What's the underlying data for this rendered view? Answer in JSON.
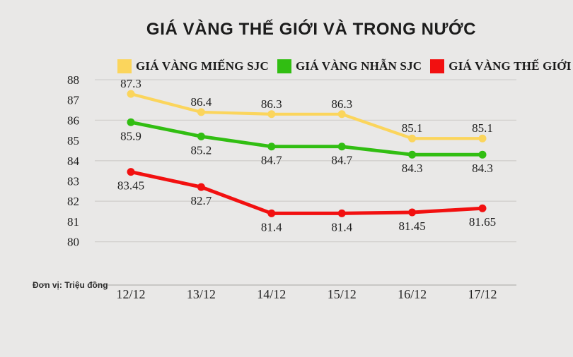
{
  "title": "GIÁ VÀNG THẾ GIỚI VÀ TRONG NƯỚC",
  "unit_label": "Đơn vị: Triệu đồng",
  "colors": {
    "background": "#e9e8e7",
    "gridline": "#d2d0ce",
    "axis_line": "#bdbcba",
    "text": "#1f1f1f",
    "series_yellow": "#fbd55c",
    "series_green": "#31be12",
    "series_red": "#f21010"
  },
  "chart_data": {
    "type": "line",
    "title": "GIÁ VÀNG THẾ GIỚI VÀ TRONG NƯỚC",
    "categories": [
      "12/12",
      "13/12",
      "14/12",
      "15/12",
      "16/12",
      "17/12"
    ],
    "series": [
      {
        "name": "GIÁ VÀNG MIẾNG SJC",
        "color": "#fbd55c",
        "values": [
          87.3,
          86.4,
          86.3,
          86.3,
          85.1,
          85.1
        ],
        "labels": [
          "87.3",
          "86.4",
          "86.3",
          "86.3",
          "85.1",
          "85.1"
        ],
        "label_position": "above",
        "line_width": 4.2
      },
      {
        "name": "GIÁ VÀNG NHẪN SJC",
        "color": "#31be12",
        "values": [
          85.9,
          85.2,
          84.7,
          84.7,
          84.3,
          84.3
        ],
        "labels": [
          "85.9",
          "85.2",
          "84.7",
          "84.7",
          "84.3",
          "84.3"
        ],
        "label_position": "below",
        "line_width": 4.8
      },
      {
        "name": "GIÁ VÀNG THẾ GIỚI",
        "color": "#f21010",
        "values": [
          83.45,
          82.7,
          81.4,
          81.4,
          81.45,
          81.65
        ],
        "labels": [
          "83.45",
          "82.7",
          "81.4",
          "81.4",
          "81.45",
          "81.65"
        ],
        "label_position": "below",
        "line_width": 5
      }
    ],
    "y_ticks": [
      88,
      87,
      86,
      85,
      84,
      83,
      82,
      81,
      80
    ],
    "gridline_values": [
      88,
      86,
      84,
      82,
      80
    ],
    "ylim": [
      80,
      88
    ],
    "xlabel": "",
    "ylabel": "Đơn vị: Triệu đồng",
    "grid": true,
    "legend_position": "top"
  }
}
